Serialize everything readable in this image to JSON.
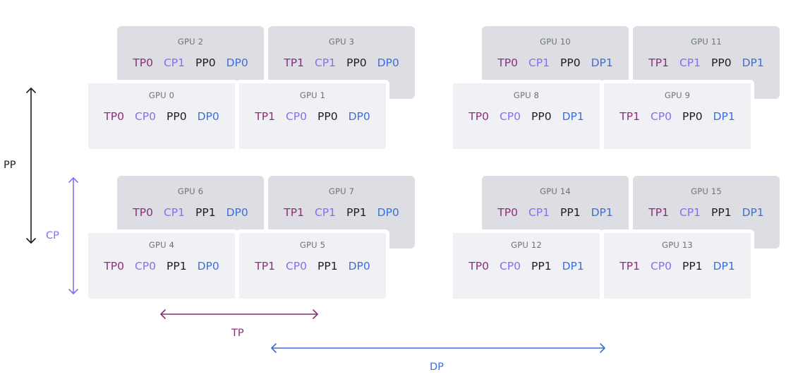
{
  "colors": {
    "tp": "#8b2f7a",
    "cp": "#8a6cf0",
    "pp": "#1c1c22",
    "dp": "#3d6fd9",
    "front_card": "#f0f1f5",
    "back_card": "#dcdee3"
  },
  "gpus": [
    {
      "title": "GPU 0",
      "tp": "TP0",
      "cp": "CP0",
      "pp": "PP0",
      "dp": "DP0"
    },
    {
      "title": "GPU 1",
      "tp": "TP1",
      "cp": "CP0",
      "pp": "PP0",
      "dp": "DP0"
    },
    {
      "title": "GPU 2",
      "tp": "TP0",
      "cp": "CP1",
      "pp": "PP0",
      "dp": "DP0"
    },
    {
      "title": "GPU 3",
      "tp": "TP1",
      "cp": "CP1",
      "pp": "PP0",
      "dp": "DP0"
    },
    {
      "title": "GPU 4",
      "tp": "TP0",
      "cp": "CP0",
      "pp": "PP1",
      "dp": "DP0"
    },
    {
      "title": "GPU 5",
      "tp": "TP1",
      "cp": "CP0",
      "pp": "PP1",
      "dp": "DP0"
    },
    {
      "title": "GPU 6",
      "tp": "TP0",
      "cp": "CP1",
      "pp": "PP1",
      "dp": "DP0"
    },
    {
      "title": "GPU 7",
      "tp": "TP1",
      "cp": "CP1",
      "pp": "PP1",
      "dp": "DP0"
    },
    {
      "title": "GPU 8",
      "tp": "TP0",
      "cp": "CP0",
      "pp": "PP0",
      "dp": "DP1"
    },
    {
      "title": "GPU 9",
      "tp": "TP1",
      "cp": "CP0",
      "pp": "PP0",
      "dp": "DP1"
    },
    {
      "title": "GPU 10",
      "tp": "TP0",
      "cp": "CP1",
      "pp": "PP0",
      "dp": "DP1"
    },
    {
      "title": "GPU 11",
      "tp": "TP1",
      "cp": "CP1",
      "pp": "PP0",
      "dp": "DP1"
    },
    {
      "title": "GPU 12",
      "tp": "TP0",
      "cp": "CP0",
      "pp": "PP1",
      "dp": "DP1"
    },
    {
      "title": "GPU 13",
      "tp": "TP1",
      "cp": "CP0",
      "pp": "PP1",
      "dp": "DP1"
    },
    {
      "title": "GPU 14",
      "tp": "TP0",
      "cp": "CP1",
      "pp": "PP1",
      "dp": "DP1"
    },
    {
      "title": "GPU 15",
      "tp": "TP1",
      "cp": "CP1",
      "pp": "PP1",
      "dp": "DP1"
    }
  ],
  "axes": {
    "pp": "PP",
    "cp": "CP",
    "tp": "TP",
    "dp": "DP"
  }
}
